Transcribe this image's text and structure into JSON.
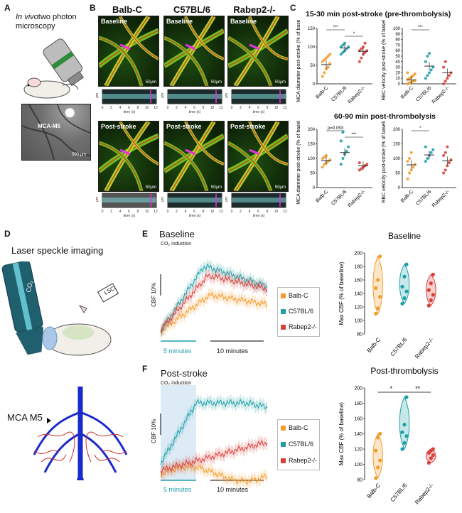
{
  "panels": {
    "A": {
      "letter": "A",
      "title_italic": "In vivo",
      "title_rest": "two photon microscopy",
      "image_label": "MCA-M5",
      "scale": "500 μm"
    },
    "B": {
      "letter": "B",
      "strains": [
        "Balb-C",
        "C57BL/6",
        "Rabep2-/-"
      ],
      "rows": [
        {
          "state": "Baseline"
        },
        {
          "state": "Post-stroke"
        }
      ],
      "scale": "50μm",
      "kymo_xlabel": "time (s)",
      "kymo_ylabel": "μm",
      "kymo_xticks": [
        "0",
        "2",
        "4",
        "6",
        "8",
        "10",
        "12"
      ]
    },
    "C": {
      "letter": "C",
      "title_top": "15-30 min post-stroke (pre-thrombolysis)",
      "title_bottom": "60-90 min post-thrombolysis"
    },
    "D": {
      "letter": "D",
      "title": "Laser speckle imaging",
      "laser_label": "CO₂",
      "lsci_label": "LSCI",
      "mca_label": "MCA M5"
    },
    "E": {
      "letter": "E",
      "title": "Baseline",
      "co2": "CO₂ induction",
      "cbf": "CBF 10%",
      "time1": "5 minutes",
      "time2": "10 minutes"
    },
    "F": {
      "letter": "F",
      "title": "Post-stroke",
      "co2": "CO₂ induction",
      "cbf": "CBF 10%",
      "time1": "5 minutes",
      "time2": "10 minutes"
    }
  },
  "legend": [
    {
      "name": "Balb-C",
      "color": "#f39c2b"
    },
    {
      "name": "C57BL/6",
      "color": "#1fa0a8"
    },
    {
      "name": "Rabep2-/-",
      "color": "#d9403a"
    }
  ],
  "chart_data": [
    {
      "id": "C1",
      "type": "scatter",
      "ylabel": "MCA diameter post-stroke (% of baseline)",
      "categories": [
        "Balb-C",
        "C57BL/6",
        "Rabep2-/-"
      ],
      "ylim": [
        0,
        150
      ],
      "yticks": [
        0,
        50,
        100,
        150
      ],
      "means": [
        52,
        97,
        88
      ],
      "sig": [
        {
          "from": 0,
          "to": 1,
          "label": "***"
        },
        {
          "from": 1,
          "to": 2,
          "label": "*"
        }
      ]
    },
    {
      "id": "C2",
      "type": "scatter",
      "ylabel": "RBC velocity post-stroke (% of baseline)",
      "categories": [
        "Balb-C",
        "C57BL/6",
        "Rabep2-/-"
      ],
      "ylim": [
        0,
        100
      ],
      "yticks": [
        0,
        10,
        20,
        30,
        40,
        50,
        60,
        70,
        80,
        90,
        100
      ],
      "means": [
        7,
        32,
        20
      ],
      "sig": [
        {
          "from": 0,
          "to": 1,
          "label": "***"
        }
      ]
    },
    {
      "id": "C3",
      "type": "scatter",
      "ylabel": "MCA diameter post-stroke (% of baseline)",
      "categories": [
        "Balb-C",
        "C57BL/6",
        "Rabep2-/-"
      ],
      "ylim": [
        0,
        200
      ],
      "yticks": [
        0,
        50,
        100,
        150,
        200
      ],
      "means": [
        93,
        120,
        75
      ],
      "sig": [
        {
          "from": 0,
          "to": 1,
          "label": "p=0.053"
        },
        {
          "from": 1,
          "to": 2,
          "label": "***"
        }
      ]
    },
    {
      "id": "C4",
      "type": "scatter",
      "ylabel": "RBC velocity post-stroke (% of baseline)",
      "categories": [
        "Balb-C",
        "C57BL/6",
        "Rabep2-/-"
      ],
      "ylim": [
        0,
        200
      ],
      "yticks": [
        0,
        50,
        100,
        150,
        200
      ],
      "means": [
        78,
        112,
        92
      ],
      "sig": [
        {
          "from": 0,
          "to": 1,
          "label": "*"
        }
      ]
    },
    {
      "id": "E_violin",
      "type": "scatter",
      "title": "Baseline",
      "ylabel": "Max CBF (% of baseline)",
      "categories": [
        "Balb-C",
        "C57BL/6",
        "Rabep2-/-"
      ],
      "ylim": [
        80,
        200
      ],
      "yticks": [
        80,
        100,
        120,
        140,
        160,
        180,
        200
      ],
      "points": [
        [
          110,
          118,
          135,
          148,
          160,
          195
        ],
        [
          125,
          133,
          143,
          150,
          165,
          183
        ],
        [
          122,
          130,
          138,
          145,
          155,
          168
        ]
      ],
      "sig": []
    },
    {
      "id": "F_violin",
      "type": "scatter",
      "title": "Post-thrombolysis",
      "ylabel": "Max CBF (% of baseline)",
      "categories": [
        "Balb-C",
        "C57BL/6",
        "Rabep2-/-"
      ],
      "ylim": [
        80,
        200
      ],
      "yticks": [
        80,
        100,
        120,
        140,
        160,
        180,
        200
      ],
      "points": [
        [
          82,
          96,
          105,
          118,
          135,
          140
        ],
        [
          120,
          128,
          137,
          142,
          152,
          188
        ],
        [
          102,
          108,
          112,
          115,
          118,
          120
        ]
      ],
      "sig": [
        {
          "from": 0,
          "to": 1,
          "label": "*"
        },
        {
          "from": 1,
          "to": 2,
          "label": "**"
        }
      ]
    }
  ]
}
